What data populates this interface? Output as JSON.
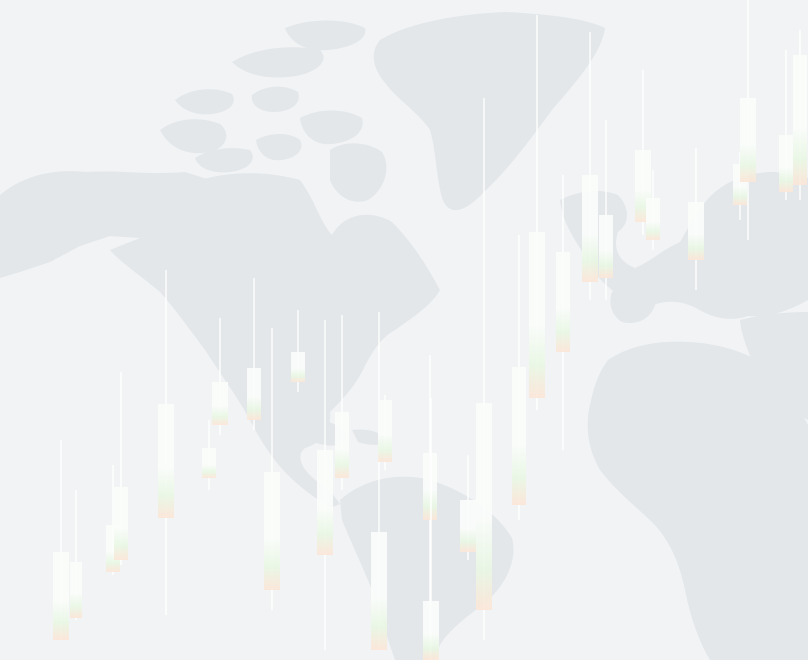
{
  "colors": {
    "background": "#f1f3f5",
    "land": "#e3e7ea",
    "wick": "#ffffff",
    "candle_fill": "#fbfdfb",
    "candle_up_tint": "#e9f7e4",
    "candle_down_tint": "#fbe6d8"
  },
  "icons": [
    "world-map-graphic",
    "candlestick-graphic"
  ],
  "candles": [
    {
      "wick": [
        440,
        640
      ],
      "body": [
        552,
        640
      ]
    },
    {
      "wick": [
        490,
        620
      ],
      "body": [
        562,
        618
      ]
    },
    {
      "wick": [
        465,
        575
      ],
      "body": [
        525,
        572
      ]
    },
    {
      "wick": [
        372,
        565
      ],
      "body": [
        487,
        560
      ]
    },
    {
      "wick": [
        270,
        615
      ],
      "body": [
        404,
        518
      ]
    },
    {
      "wick": [
        420,
        490
      ],
      "body": [
        448,
        478
      ]
    },
    {
      "wick": [
        318,
        435
      ],
      "body": [
        382,
        425
      ]
    },
    {
      "wick": [
        278,
        430
      ],
      "body": [
        368,
        420
      ]
    },
    {
      "wick": [
        328,
        610
      ],
      "body": [
        472,
        590
      ]
    },
    {
      "wick": [
        310,
        392
      ],
      "body": [
        352,
        382
      ]
    },
    {
      "wick": [
        320,
        650
      ],
      "body": [
        450,
        555
      ]
    },
    {
      "wick": [
        315,
        490
      ],
      "body": [
        412,
        478
      ]
    },
    {
      "wick": [
        312,
        650
      ],
      "body": [
        532,
        650
      ]
    },
    {
      "wick": [
        395,
        470
      ],
      "body": [
        400,
        462
      ]
    },
    {
      "wick": [
        355,
        660
      ],
      "body": [
        453,
        520
      ]
    },
    {
      "wick": [
        398,
        660
      ],
      "body": [
        601,
        660
      ]
    },
    {
      "wick": [
        455,
        560
      ],
      "body": [
        500,
        552
      ]
    },
    {
      "wick": [
        98,
        640
      ],
      "body": [
        403,
        610
      ]
    },
    {
      "wick": [
        235,
        520
      ],
      "body": [
        367,
        505
      ]
    },
    {
      "wick": [
        15,
        410
      ],
      "body": [
        232,
        398
      ]
    },
    {
      "wick": [
        175,
        450
      ],
      "body": [
        252,
        352
      ]
    },
    {
      "wick": [
        32,
        300
      ],
      "body": [
        175,
        282
      ]
    },
    {
      "wick": [
        120,
        300
      ],
      "body": [
        215,
        278
      ]
    },
    {
      "wick": [
        70,
        235
      ],
      "body": [
        150,
        222
      ]
    },
    {
      "wick": [
        170,
        250
      ],
      "body": [
        198,
        240
      ]
    },
    {
      "wick": [
        148,
        290
      ],
      "body": [
        202,
        260
      ]
    },
    {
      "wick": [
        152,
        220
      ],
      "body": [
        164,
        205
      ]
    },
    {
      "wick": [
        0,
        240
      ],
      "body": [
        98,
        182
      ]
    },
    {
      "wick": [
        50,
        200
      ],
      "body": [
        135,
        192
      ]
    },
    {
      "wick": [
        30,
        200
      ],
      "body": [
        55,
        185
      ]
    }
  ]
}
